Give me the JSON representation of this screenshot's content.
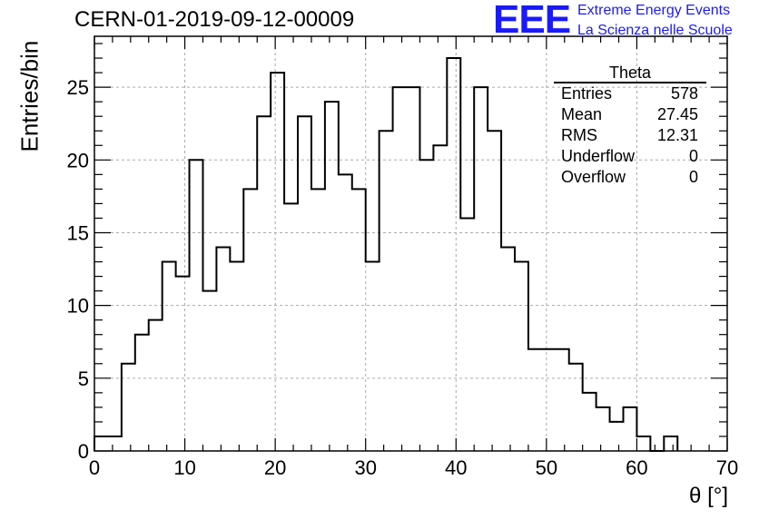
{
  "chart_data": {
    "type": "bar",
    "title": "CERN-01-2019-09-12-00009",
    "xlabel": "θ [°]",
    "ylabel": "Entries/bin",
    "xlim": [
      0,
      70
    ],
    "ylim": [
      0,
      28.5
    ],
    "bin_width": 1.5,
    "values": [
      1,
      1,
      6,
      8,
      9,
      13,
      12,
      20,
      11,
      14,
      13,
      18,
      23,
      26,
      17,
      23,
      18,
      24,
      19,
      18,
      13,
      22,
      25,
      25,
      20,
      21,
      27,
      16,
      25,
      22,
      14,
      13,
      7,
      7,
      7,
      6,
      4,
      3,
      2,
      3,
      1,
      0,
      1
    ],
    "xticks": [
      "0",
      "10",
      "20",
      "30",
      "40",
      "50",
      "60",
      "70"
    ],
    "yticks": [
      "0",
      "5",
      "10",
      "15",
      "20",
      "25"
    ],
    "grid": true,
    "stats_box": {
      "title": "Theta",
      "rows": [
        {
          "label": "Entries",
          "value": "578"
        },
        {
          "label": "Mean",
          "value": "27.45"
        },
        {
          "label": "RMS",
          "value": "12.31"
        },
        {
          "label": "Underflow",
          "value": "0"
        },
        {
          "label": "Overflow",
          "value": "0"
        }
      ],
      "position": "top-right"
    }
  },
  "logo": {
    "mark": "EEE",
    "line1": "Extreme Energy Events",
    "line2": "La Scienza nelle Scuole",
    "color": "#1a1aff"
  }
}
